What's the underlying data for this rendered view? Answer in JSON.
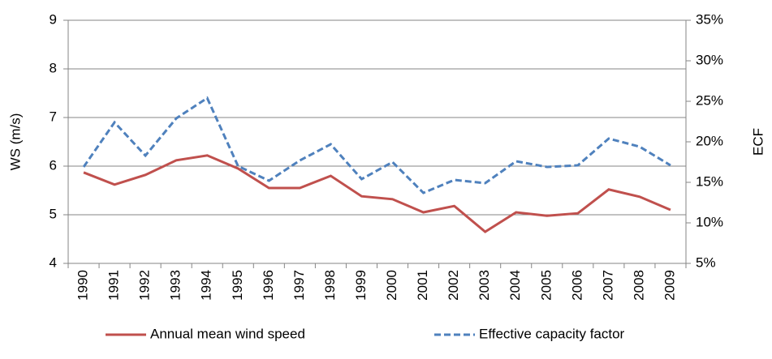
{
  "chart_data": {
    "type": "line",
    "categories": [
      "1990",
      "1991",
      "1992",
      "1993",
      "1994",
      "1995",
      "1996",
      "1997",
      "1998",
      "1999",
      "2000",
      "2001",
      "2002",
      "2003",
      "2004",
      "2005",
      "2006",
      "2007",
      "2008",
      "2009"
    ],
    "series": [
      {
        "name": "Annual mean wind speed",
        "color": "#c0504d",
        "values": [
          5.87,
          5.62,
          5.82,
          6.12,
          6.22,
          5.95,
          5.55,
          5.55,
          5.8,
          5.38,
          5.32,
          5.05,
          5.18,
          4.65,
          5.05,
          4.98,
          5.03,
          5.52,
          5.37,
          5.1
        ]
      },
      {
        "name": "Effective capacity factor",
        "color": "#4f81bd",
        "dashed": true,
        "axis": "y2",
        "values": [
          16.9,
          22.4,
          18.3,
          22.9,
          25.4,
          17,
          15.2,
          17.7,
          19.7,
          15.4,
          17.5,
          13.7,
          15.3,
          14.9,
          17.6,
          16.9,
          17.1,
          20.4,
          19.4,
          17.1
        ]
      }
    ],
    "ylabel": "WS (m/s)",
    "y2label": "ECF",
    "ylim": [
      4,
      9
    ],
    "yticks": [
      4,
      5,
      6,
      7,
      8,
      9
    ],
    "y2lim": [
      5,
      35
    ],
    "y2ticks": [
      {
        "value": 5,
        "label": "5%"
      },
      {
        "value": 10,
        "label": "10%"
      },
      {
        "value": 15,
        "label": "15%"
      },
      {
        "value": 20,
        "label": "20%"
      },
      {
        "value": 25,
        "label": "25%"
      },
      {
        "value": 30,
        "label": "30%"
      },
      {
        "value": 35,
        "label": "35%"
      }
    ],
    "grid": true,
    "legend": "bottom"
  }
}
